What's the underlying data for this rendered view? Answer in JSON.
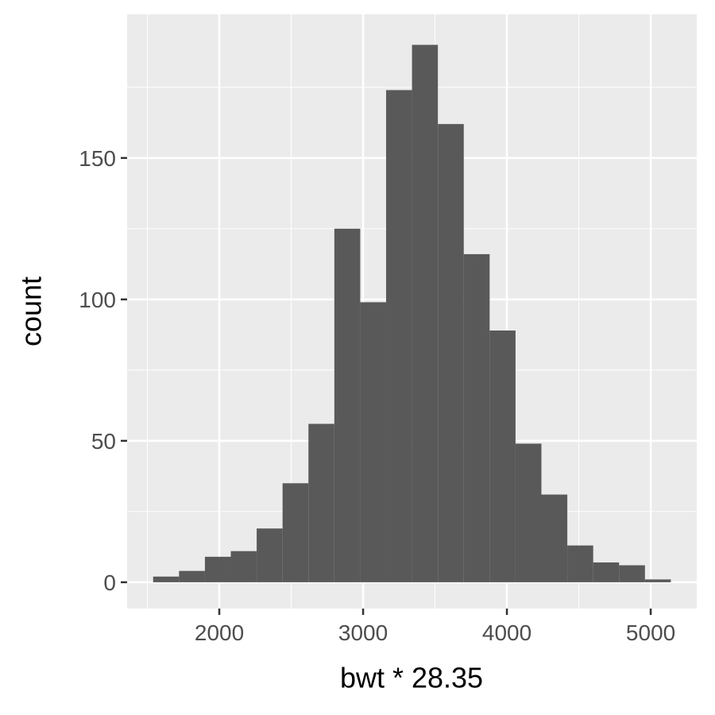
{
  "chart_data": {
    "type": "histogram",
    "x_label": "bwt * 28.35",
    "y_label": "count",
    "bins": [
      1540,
      1720,
      1900,
      2080,
      2260,
      2440,
      2620,
      2800,
      2980,
      3160,
      3340,
      3520,
      3700,
      3880,
      4060,
      4240,
      4420,
      4600,
      4780,
      4960,
      5140
    ],
    "values": [
      2,
      4,
      9,
      11,
      19,
      35,
      56,
      125,
      99,
      174,
      190,
      162,
      116,
      89,
      49,
      31,
      13,
      7,
      6,
      1
    ],
    "color": "#595959",
    "xlim": [
      1359,
      5320
    ],
    "ylim": [
      -9.3,
      200.8
    ],
    "xticks": [
      2000,
      3000,
      4000,
      5000
    ],
    "yticks": [
      0,
      50,
      100,
      150
    ],
    "x_minor_grid": [
      1500,
      2500,
      3500,
      4500
    ],
    "y_minor_grid": [
      25,
      75,
      125,
      175
    ],
    "grid": true
  }
}
